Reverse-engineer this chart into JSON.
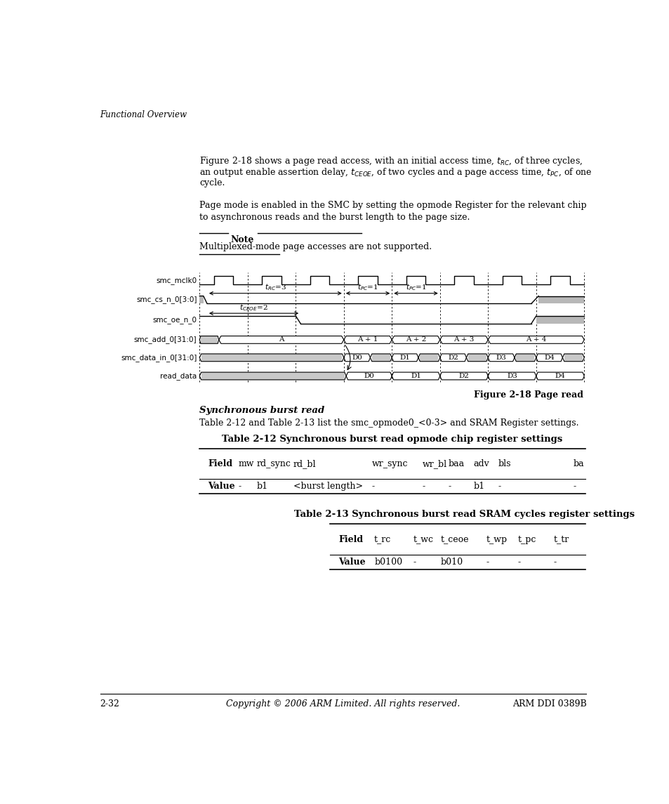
{
  "page_width": 9.54,
  "page_height": 11.45,
  "bg_color": "#ffffff",
  "header_text": "Functional Overview",
  "fig_caption": "Figure 2-18 Page read",
  "sync_title": "Synchronous burst read",
  "sync_para": "Table 2-12 and Table 2-13 list the smc_opmode0_<0-3> and SRAM Register settings.",
  "table12_title": "Table 2-12 Synchronous burst read opmode chip register settings",
  "table13_title": "Table 2-13 Synchronous burst read SRAM cycles register settings",
  "footer_left": "2-32",
  "footer_center": "Copyright © 2006 ARM Limited. All rights reserved.",
  "footer_right": "ARM DDI 0389B",
  "gray_color": "#b8b8b8",
  "light_gray": "#c8c8c8",
  "note_text": "Multiplexed-mode page accesses are not supported."
}
